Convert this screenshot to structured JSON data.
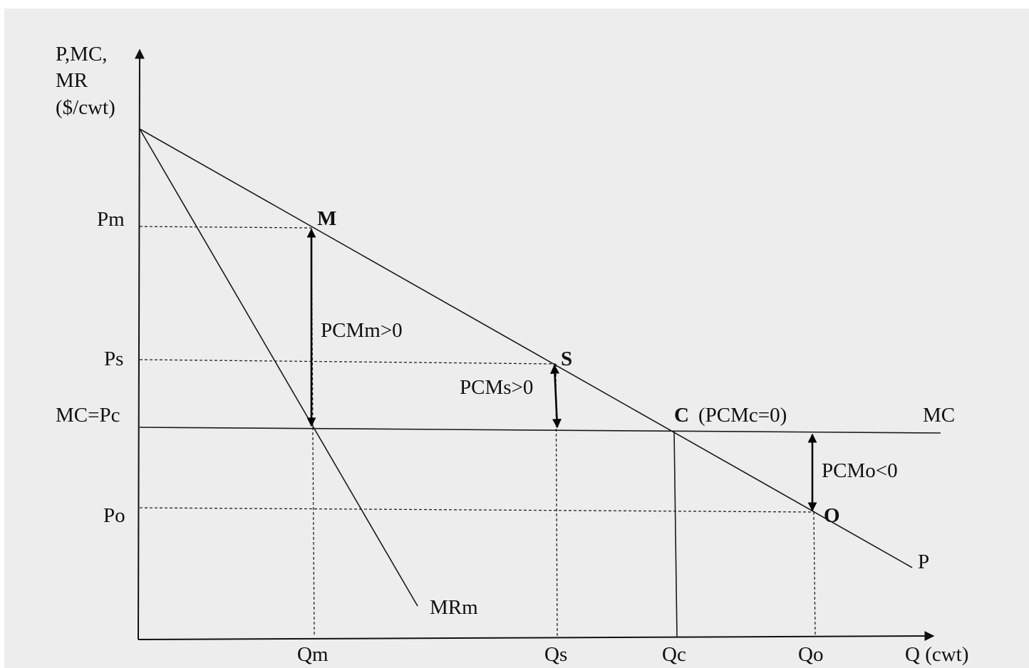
{
  "axes": {
    "y_label_lines": [
      "P,MC,",
      "MR",
      "($/cwt)"
    ],
    "x_label": "Q (cwt)"
  },
  "price_labels": {
    "pm": "Pm",
    "ps": "Ps",
    "mc_pc": "MC=Pc",
    "po": "Po"
  },
  "quantity_labels": {
    "qm": "Qm",
    "qs": "Qs",
    "qc": "Qc",
    "qo": "Qo"
  },
  "curves": {
    "demand": "P",
    "marginal_revenue": "MRm",
    "marginal_cost": "MC"
  },
  "points": {
    "m": "M",
    "s": "S",
    "c": "C",
    "c_note": "(PCMc=0)",
    "o": "O"
  },
  "margins": {
    "monopoly": "PCMm>0",
    "s": "PCMs>0",
    "o": "PCMo<0"
  },
  "colors": {
    "background": "#ededed",
    "lines": "#1a1a1a",
    "arrows": "#000000"
  }
}
